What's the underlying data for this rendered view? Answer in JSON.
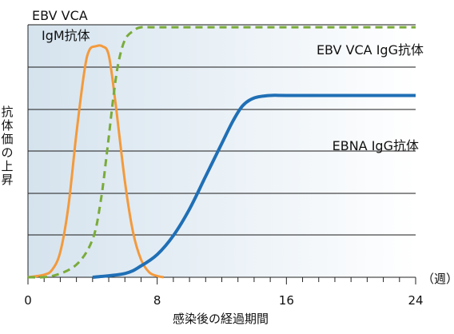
{
  "chart_data": {
    "type": "line",
    "xlabel": "感染後の経過期間",
    "ylabel": "抗体価の上昇",
    "x_unit": "（週）",
    "xlim": [
      0,
      24
    ],
    "ylim": [
      0,
      100
    ],
    "x_ticks": [
      0,
      8,
      16,
      24
    ],
    "grid": true,
    "colors": {
      "igm": "#f39a3c",
      "vca_igg": "#7aab3a",
      "ebna": "#1f6fb5",
      "grid": "#1a1a1a",
      "shade_left": "#d5e3ee",
      "shade_right": "#ffffff"
    },
    "series": [
      {
        "key": "igm",
        "name": "EBV VCA IgM抗体",
        "label_lines": [
          "EBV VCA",
          "IgM抗体"
        ],
        "style": "solid",
        "x": [
          0,
          1,
          1.5,
          2,
          2.5,
          3,
          3.5,
          3.8,
          4.2,
          4.6,
          5,
          5.4,
          6,
          6.5,
          7,
          7.5,
          8,
          8.4
        ],
        "y": [
          0,
          1,
          3,
          10,
          28,
          57,
          82,
          90,
          91.5,
          91.5,
          88,
          70,
          38,
          18,
          7,
          2,
          0.5,
          0
        ]
      },
      {
        "key": "vca_igg",
        "name": "EBV VCA IgG抗体",
        "label_lines": [
          "EBV VCA IgG抗体"
        ],
        "style": "dashed",
        "x": [
          0,
          1.5,
          3,
          4,
          4.5,
          4.9,
          5.3,
          5.6,
          6,
          6.5,
          7,
          8,
          12,
          16,
          20,
          24
        ],
        "y": [
          0,
          0.5,
          5,
          15,
          30,
          50,
          72,
          85,
          94,
          97.5,
          99,
          99,
          99,
          99,
          99,
          99
        ]
      },
      {
        "key": "ebna",
        "name": "EBNA IgG抗体",
        "label_lines": [
          "EBNA IgG抗体"
        ],
        "style": "solid",
        "x": [
          4,
          6,
          7,
          8,
          9,
          10,
          11,
          12,
          12.7,
          13.3,
          14,
          15,
          16,
          20,
          24
        ],
        "y": [
          0,
          1.5,
          4.5,
          9,
          16.5,
          27,
          40,
          53,
          62,
          68,
          71,
          72,
          72,
          72,
          72
        ]
      }
    ]
  }
}
